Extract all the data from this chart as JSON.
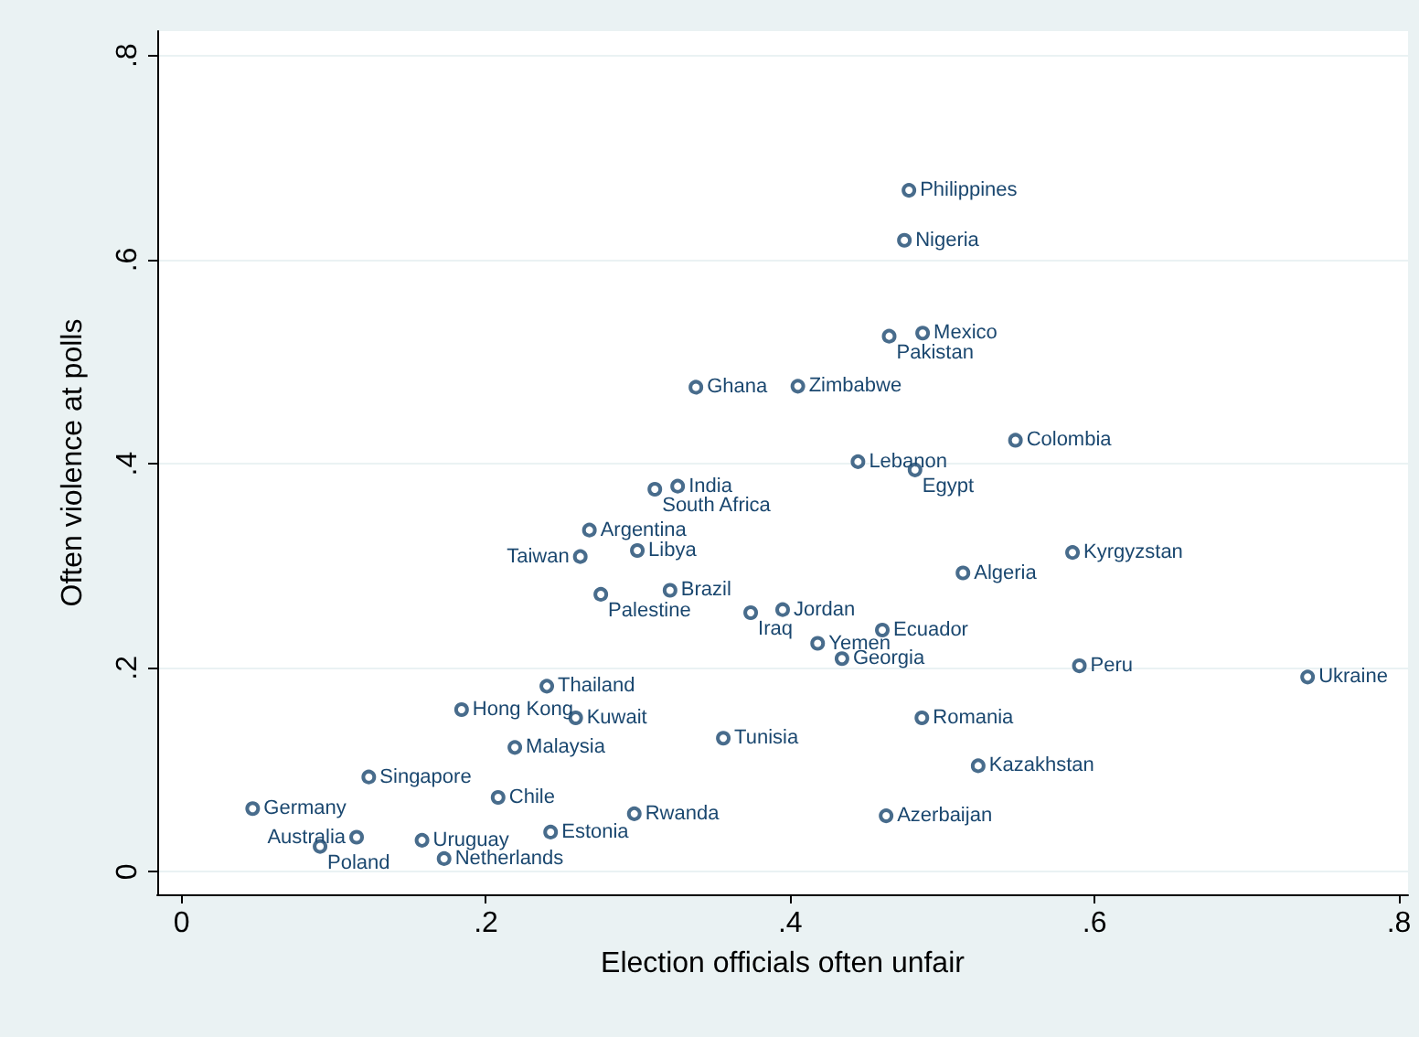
{
  "chart_data": {
    "type": "scatter",
    "xlabel": "Election officials often unfair",
    "ylabel": "Often violence at polls",
    "xlim": [
      -0.016,
      0.806
    ],
    "ylim": [
      -0.022,
      0.824
    ],
    "xticks": [
      0,
      {
        "value": 0.2,
        "label": ".2"
      },
      {
        "value": 0.4,
        "label": ".4"
      },
      {
        "value": 0.6,
        "label": ".6"
      },
      {
        "value": 0.8,
        "label": ".8"
      }
    ],
    "yticks": [
      0,
      {
        "value": 0.2,
        "label": ".2"
      },
      {
        "value": 0.4,
        "label": ".4"
      },
      {
        "value": 0.6,
        "label": ".6"
      },
      {
        "value": 0.8,
        "label": ".8"
      }
    ],
    "grid": "y",
    "marker": "circle",
    "series": [
      {
        "color": "#1a476f",
        "x": [
          0.478,
          0.475,
          0.465,
          0.487,
          0.338,
          0.405,
          0.548,
          0.4445,
          0.482,
          0.326,
          0.311,
          0.268,
          0.2995,
          0.262,
          0.5855,
          0.5135,
          0.321,
          0.2755,
          0.374,
          0.395,
          0.4605,
          0.418,
          0.434,
          0.59,
          0.74,
          0.24,
          0.184,
          0.259,
          0.4865,
          0.356,
          0.219,
          0.5235,
          0.123,
          0.208,
          0.0467,
          0.2975,
          0.115,
          0.158,
          0.2425,
          0.091,
          0.1725,
          0.463
        ],
        "values": [
          0.668,
          0.619,
          0.525,
          0.528,
          0.475,
          0.476,
          0.423,
          0.402,
          0.394,
          0.378,
          0.375,
          0.335,
          0.315,
          0.309,
          0.313,
          0.293,
          0.276,
          0.272,
          0.254,
          0.257,
          0.237,
          0.224,
          0.209,
          0.202,
          0.191,
          0.182,
          0.159,
          0.151,
          0.151,
          0.131,
          0.122,
          0.104,
          0.093,
          0.073,
          0.062,
          0.057,
          0.034,
          0.031,
          0.039,
          0.025,
          0.013,
          0.055
        ]
      }
    ],
    "annotations": [
      {
        "text": "Philippines",
        "x": 0.478,
        "y": 0.668
      },
      {
        "text": "Nigeria",
        "x": 0.475,
        "y": 0.619
      },
      {
        "text": "Pakistan",
        "x": 0.465,
        "y": 0.525
      },
      {
        "text": "Mexico",
        "x": 0.487,
        "y": 0.528
      },
      {
        "text": "Ghana",
        "x": 0.338,
        "y": 0.475
      },
      {
        "text": "Zimbabwe",
        "x": 0.405,
        "y": 0.476
      },
      {
        "text": "Colombia",
        "x": 0.548,
        "y": 0.423
      },
      {
        "text": "Lebanon",
        "x": 0.4445,
        "y": 0.402
      },
      {
        "text": "Egypt",
        "x": 0.482,
        "y": 0.394
      },
      {
        "text": "India",
        "x": 0.326,
        "y": 0.378
      },
      {
        "text": "South Africa",
        "x": 0.311,
        "y": 0.375
      },
      {
        "text": "Argentina",
        "x": 0.268,
        "y": 0.335
      },
      {
        "text": "Libya",
        "x": 0.2995,
        "y": 0.315
      },
      {
        "text": "Taiwan",
        "x": 0.262,
        "y": 0.309
      },
      {
        "text": "Kyrgyzstan",
        "x": 0.5855,
        "y": 0.313
      },
      {
        "text": "Algeria",
        "x": 0.5135,
        "y": 0.293
      },
      {
        "text": "Brazil",
        "x": 0.321,
        "y": 0.276
      },
      {
        "text": "Palestine",
        "x": 0.2755,
        "y": 0.272
      },
      {
        "text": "Iraq",
        "x": 0.374,
        "y": 0.254
      },
      {
        "text": "Jordan",
        "x": 0.395,
        "y": 0.257
      },
      {
        "text": "Ecuador",
        "x": 0.4605,
        "y": 0.237
      },
      {
        "text": "Yemen",
        "x": 0.418,
        "y": 0.224
      },
      {
        "text": "Georgia",
        "x": 0.434,
        "y": 0.209
      },
      {
        "text": "Peru",
        "x": 0.59,
        "y": 0.202
      },
      {
        "text": "Ukraine",
        "x": 0.74,
        "y": 0.191
      },
      {
        "text": "Thailand",
        "x": 0.24,
        "y": 0.182
      },
      {
        "text": "Hong Kong",
        "x": 0.184,
        "y": 0.159
      },
      {
        "text": "Kuwait",
        "x": 0.259,
        "y": 0.151
      },
      {
        "text": "Romania",
        "x": 0.4865,
        "y": 0.151
      },
      {
        "text": "Tunisia",
        "x": 0.356,
        "y": 0.131
      },
      {
        "text": "Malaysia",
        "x": 0.219,
        "y": 0.122
      },
      {
        "text": "Kazakhstan",
        "x": 0.5235,
        "y": 0.104
      },
      {
        "text": "Singapore",
        "x": 0.123,
        "y": 0.093
      },
      {
        "text": "Chile",
        "x": 0.208,
        "y": 0.073
      },
      {
        "text": "Germany",
        "x": 0.0467,
        "y": 0.062
      },
      {
        "text": "Rwanda",
        "x": 0.2975,
        "y": 0.057
      },
      {
        "text": "Australia",
        "x": 0.115,
        "y": 0.034
      },
      {
        "text": "Uruguay",
        "x": 0.158,
        "y": 0.031
      },
      {
        "text": "Estonia",
        "x": 0.2425,
        "y": 0.039
      },
      {
        "text": "Poland",
        "x": 0.091,
        "y": 0.025
      },
      {
        "text": "Netherlands",
        "x": 0.1725,
        "y": 0.013
      },
      {
        "text": "Azerbaijan",
        "x": 0.463,
        "y": 0.055
      }
    ]
  }
}
